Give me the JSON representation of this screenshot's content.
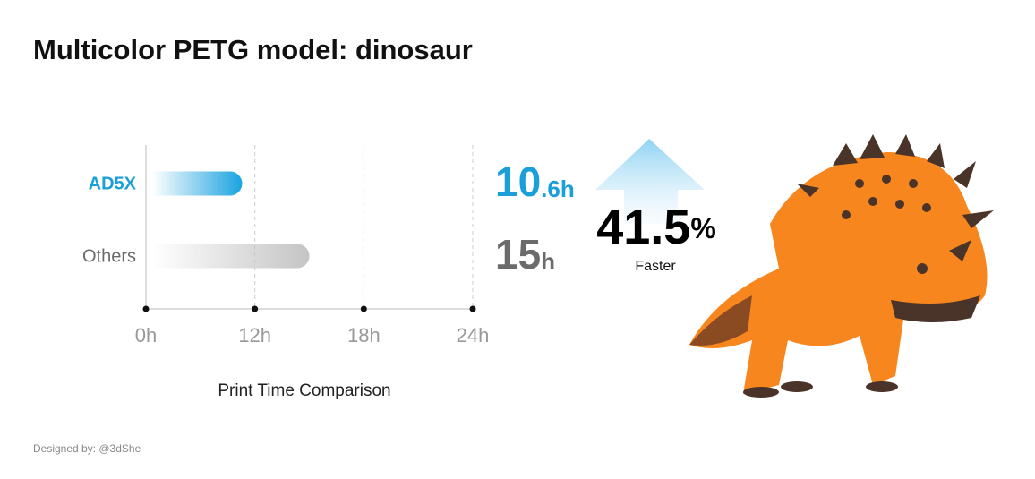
{
  "chart_data": {
    "type": "bar",
    "orientation": "horizontal",
    "title": "Multicolor PETG model: dinosaur",
    "categories": [
      "AD5X",
      "Others"
    ],
    "values": [
      10.6,
      15
    ],
    "value_labels": [
      "10.6h",
      "15h"
    ],
    "colors": [
      "#1aa3e0",
      "#c4c4c4"
    ],
    "label_colors": [
      "#1a9fd8",
      "#6b6b6b"
    ],
    "xlim": [
      0,
      24
    ],
    "xticks": [
      {
        "value": 0,
        "label": "0h"
      },
      {
        "value": 12,
        "label": "12h"
      },
      {
        "value": 18,
        "label": "18h"
      },
      {
        "value": 24,
        "label": "24h"
      }
    ],
    "xlabel": "Print Time Comparison",
    "grid": true,
    "annotation": {
      "value": 41.5,
      "label": "41.5%",
      "caption": "Faster"
    },
    "credit": "Designed by: @3dShe"
  }
}
